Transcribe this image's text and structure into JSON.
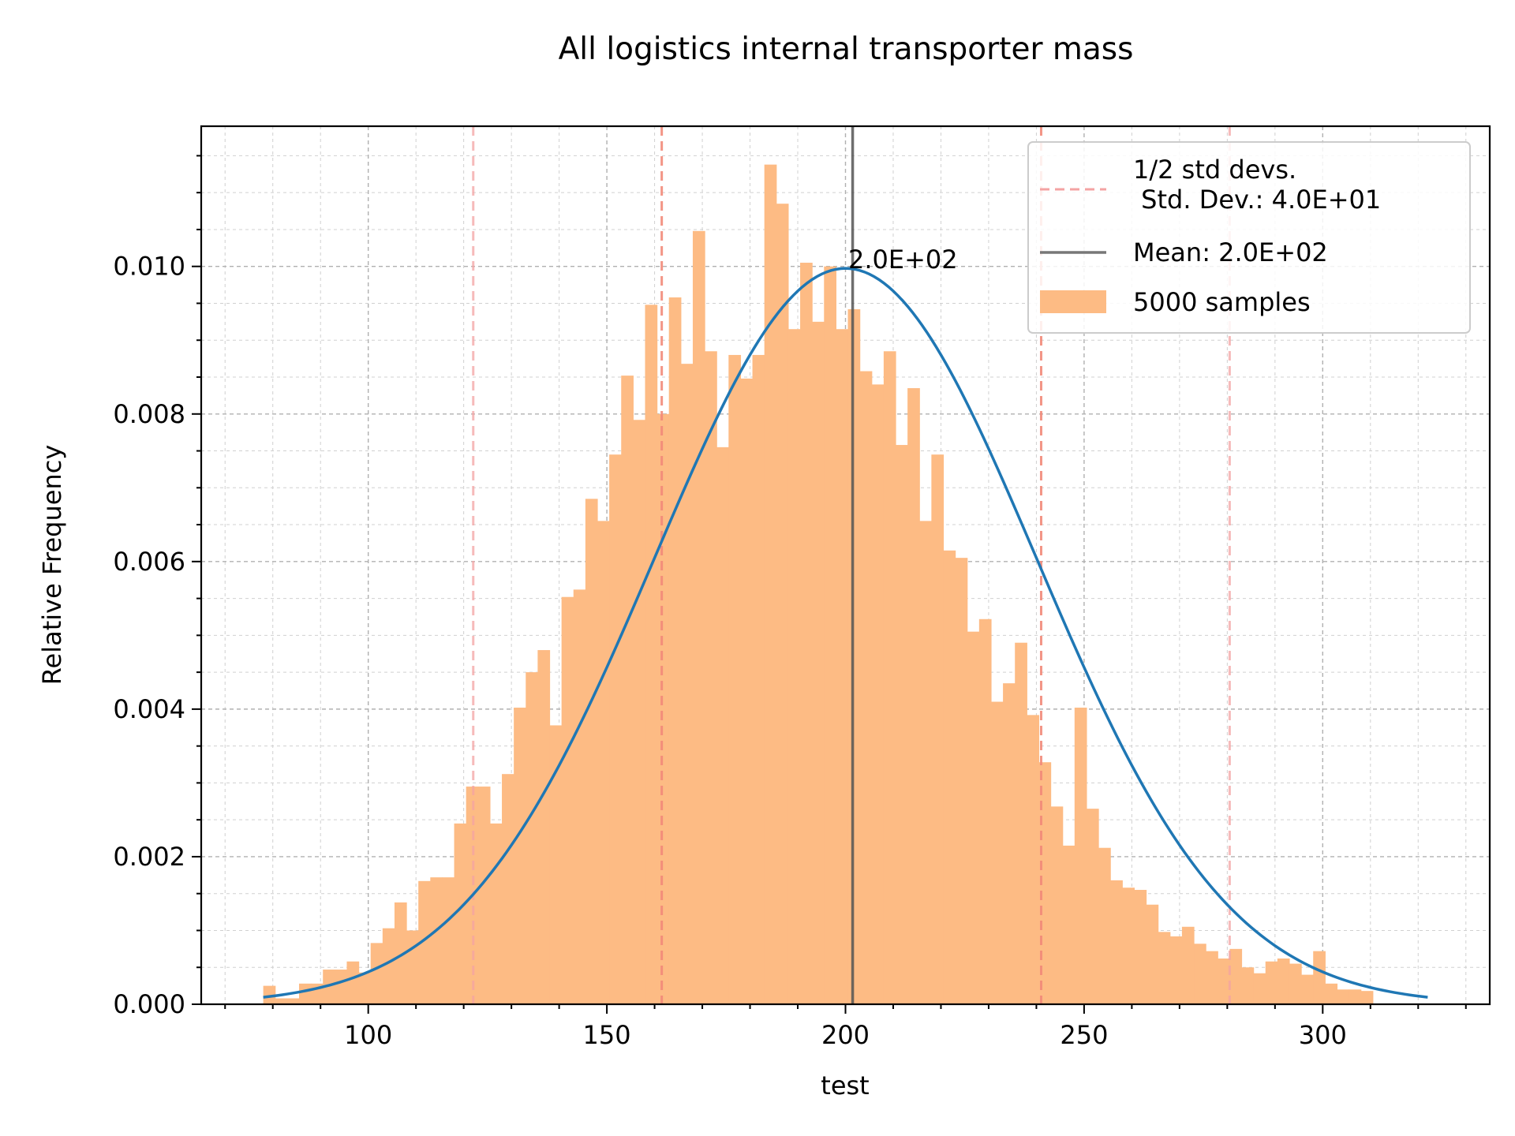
{
  "chart_data": {
    "type": "bar",
    "title": "All logistics  internal transporter mass",
    "xlabel": "test",
    "ylabel": "Relative Frequency",
    "xlim": [
      65,
      335
    ],
    "ylim": [
      0,
      0.0119
    ],
    "xticks": [
      100,
      150,
      200,
      250,
      300
    ],
    "xtick_labels": [
      "100",
      "150",
      "200",
      "250",
      "300"
    ],
    "yticks": [
      0,
      0.002,
      0.004,
      0.006,
      0.008,
      0.01
    ],
    "ytick_labels": [
      "0.000",
      "0.002",
      "0.004",
      "0.006",
      "0.008",
      "0.010"
    ],
    "grid": true,
    "legend_position": "top-right",
    "histogram": {
      "name": "5000 samples",
      "color": "#fdbb84",
      "bin_start": 78,
      "bin_width": 2.5,
      "values": [
        0.00025,
        8e-05,
        8e-05,
        0.00028,
        0.00028,
        0.00047,
        0.00047,
        0.00058,
        0.00043,
        0.00083,
        0.00103,
        0.00138,
        0.001,
        0.00167,
        0.00172,
        0.00172,
        0.00245,
        0.00295,
        0.00295,
        0.00245,
        0.00312,
        0.00402,
        0.0045,
        0.0048,
        0.00378,
        0.00552,
        0.00562,
        0.00685,
        0.00655,
        0.00745,
        0.00852,
        0.00792,
        0.00948,
        0.008,
        0.00958,
        0.00868,
        0.01048,
        0.00885,
        0.00755,
        0.0088,
        0.00848,
        0.0088,
        0.01138,
        0.01085,
        0.00915,
        0.01005,
        0.00925,
        0.01,
        0.00915,
        0.00942,
        0.00858,
        0.0084,
        0.00885,
        0.00758,
        0.00835,
        0.00655,
        0.00745,
        0.00615,
        0.00605,
        0.00505,
        0.00522,
        0.0041,
        0.00435,
        0.0049,
        0.00392,
        0.00328,
        0.00268,
        0.00215,
        0.00402,
        0.00265,
        0.00212,
        0.00168,
        0.00158,
        0.00155,
        0.00135,
        0.00098,
        0.00092,
        0.00105,
        0.00082,
        0.00072,
        0.00062,
        0.00075,
        0.0005,
        0.00042,
        0.00058,
        0.00062,
        0.00055,
        0.0004,
        0.00072,
        0.00028,
        0.0002,
        0.0002,
        0.00018
      ]
    },
    "normal_fit": {
      "mean": 200,
      "std": 40,
      "x_range": [
        78,
        322
      ],
      "color": "#1f77b4"
    },
    "mean_line": {
      "x": 201.5,
      "label": "Mean: 2.0E+02",
      "annotation": "2.0E+02",
      "color": "#555555"
    },
    "std_lines": {
      "x": [
        122,
        161.5,
        241,
        280.5
      ],
      "label": "1/2 std devs.\n Std. Dev.: 4.0E+01",
      "color": "#f4a3a3"
    }
  }
}
